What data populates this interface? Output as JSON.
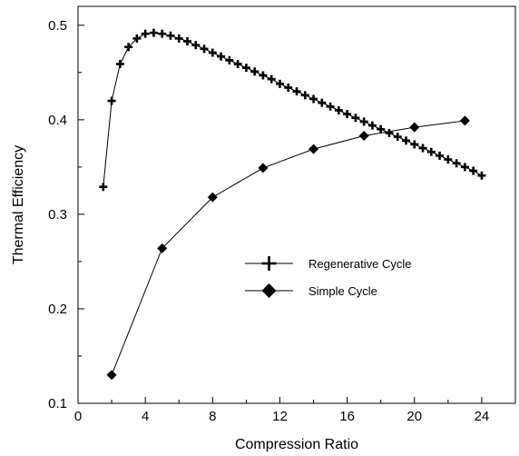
{
  "chart_data": {
    "type": "line",
    "xlabel": "Compression Ratio",
    "ylabel": "Thermal Efficiency",
    "xlim": [
      0,
      26
    ],
    "ylim": [
      0.1,
      0.52
    ],
    "xticks": [
      0,
      4,
      8,
      12,
      16,
      20,
      24
    ],
    "yticks": [
      0.1,
      0.2,
      0.3,
      0.4,
      0.5
    ],
    "xtick_labels": [
      "0",
      "4",
      "8",
      "12",
      "16",
      "20",
      "24"
    ],
    "ytick_labels": [
      "0.1",
      "0.2",
      "0.3",
      "0.4",
      "0.5"
    ],
    "grid": false,
    "legend_position": "center-right",
    "series": [
      {
        "name": "Regenerative Cycle",
        "marker": "plus",
        "color": "#000000",
        "x": [
          1.5,
          2,
          2.5,
          3,
          3.5,
          4,
          4.5,
          5,
          5.5,
          6,
          6.5,
          7,
          7.5,
          8,
          8.5,
          9,
          9.5,
          10,
          10.5,
          11,
          11.5,
          12,
          12.5,
          13,
          13.5,
          14,
          14.5,
          15,
          15.5,
          16,
          16.5,
          17,
          17.5,
          18,
          18.5,
          19,
          19.5,
          20,
          20.5,
          21,
          21.5,
          22,
          22.5,
          23,
          23.5,
          24
        ],
        "y": [
          0.329,
          0.42,
          0.459,
          0.477,
          0.486,
          0.491,
          0.492,
          0.491,
          0.489,
          0.486,
          0.483,
          0.479,
          0.475,
          0.471,
          0.467,
          0.463,
          0.459,
          0.455,
          0.451,
          0.447,
          0.443,
          0.438,
          0.434,
          0.43,
          0.426,
          0.422,
          0.418,
          0.414,
          0.41,
          0.406,
          0.402,
          0.398,
          0.394,
          0.39,
          0.386,
          0.382,
          0.378,
          0.374,
          0.37,
          0.366,
          0.362,
          0.358,
          0.354,
          0.35,
          0.346,
          0.341
        ]
      },
      {
        "name": "Simple Cycle",
        "marker": "diamond",
        "color": "#000000",
        "x": [
          2,
          5,
          8,
          11,
          14,
          17,
          20,
          23
        ],
        "y": [
          0.13,
          0.264,
          0.318,
          0.349,
          0.369,
          0.383,
          0.392,
          0.399
        ]
      }
    ]
  }
}
